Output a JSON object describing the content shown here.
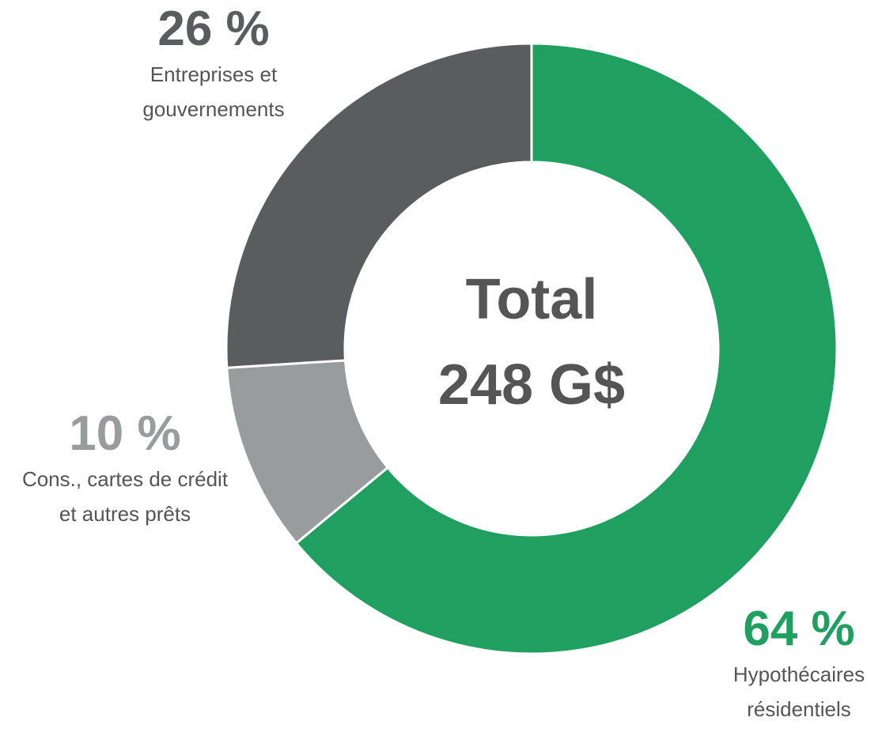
{
  "chart_data": {
    "type": "donut",
    "categories": [
      "Hypothécaires\nrésidentiels",
      "Cons., cartes de crédit\net autres prêts",
      "Entreprises et\ngouvernements"
    ],
    "values": [
      64,
      10,
      26
    ],
    "value_labels": [
      "64 %",
      "10 %",
      "26 %"
    ],
    "colors": [
      "#1fa060",
      "#999c9d",
      "#5a5d5e"
    ],
    "center_text": [
      "Total",
      "248 G$"
    ]
  }
}
